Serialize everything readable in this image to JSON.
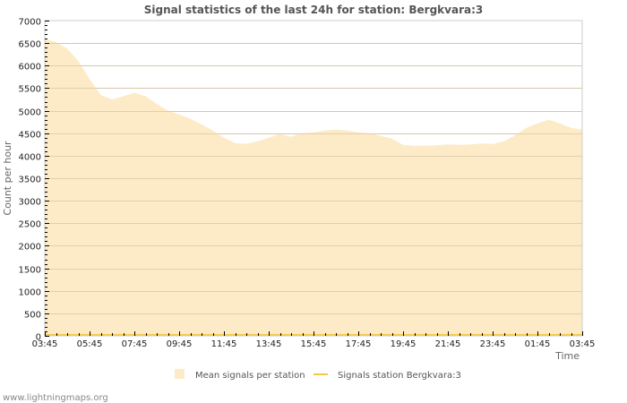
{
  "chart_data": {
    "type": "area",
    "title": "Signal statistics of the last 24h for station: Bergkvara:3",
    "xlabel": "Time",
    "ylabel": "Count per hour",
    "ylim": [
      0,
      7000
    ],
    "yticks": [
      0,
      500,
      1000,
      1500,
      2000,
      2500,
      3000,
      3500,
      4000,
      4500,
      5000,
      5500,
      6000,
      6500,
      7000
    ],
    "xtick_labels": [
      "03:45",
      "05:45",
      "07:45",
      "09:45",
      "11:45",
      "13:45",
      "15:45",
      "17:45",
      "19:45",
      "21:45",
      "23:45",
      "01:45",
      "03:45"
    ],
    "grid": true,
    "legend_position": "bottom",
    "x_hours": [
      0,
      0.5,
      1,
      1.5,
      2,
      2.5,
      3,
      3.5,
      4,
      4.5,
      5,
      5.5,
      6,
      6.5,
      7,
      7.5,
      8,
      8.5,
      9,
      9.5,
      10,
      10.5,
      11,
      11.5,
      12,
      12.5,
      13,
      13.5,
      14,
      14.5,
      15,
      15.5,
      16,
      16.5,
      17,
      17.5,
      18,
      18.5,
      19,
      19.5,
      20,
      20.5,
      21,
      21.5,
      22,
      22.5,
      23,
      23.5,
      24
    ],
    "series": [
      {
        "name": "Mean signals per station",
        "style": "area",
        "color": "#fdebc8",
        "values": [
          6600,
          6520,
          6380,
          6100,
          5700,
          5350,
          5250,
          5320,
          5400,
          5320,
          5150,
          5000,
          4920,
          4820,
          4700,
          4560,
          4400,
          4280,
          4260,
          4320,
          4400,
          4480,
          4420,
          4500,
          4520,
          4560,
          4580,
          4560,
          4520,
          4500,
          4440,
          4380,
          4240,
          4220,
          4220,
          4230,
          4250,
          4240,
          4250,
          4270,
          4260,
          4320,
          4450,
          4620,
          4720,
          4800,
          4720,
          4620,
          4580
        ]
      },
      {
        "name": "Signals station Bergkvara:3",
        "style": "line",
        "color": "#f5c842",
        "values": [
          0,
          0,
          0,
          0,
          0,
          0,
          0,
          0,
          0,
          0,
          0,
          0,
          0,
          0,
          0,
          0,
          0,
          0,
          0,
          0,
          0,
          0,
          0,
          0,
          0,
          0,
          0,
          0,
          0,
          0,
          0,
          0,
          0,
          0,
          0,
          0,
          0,
          0,
          0,
          0,
          0,
          0,
          0,
          0,
          0,
          0,
          0,
          0,
          0
        ]
      }
    ]
  },
  "legend": {
    "items": [
      {
        "label": "Mean signals per station",
        "swatch": "area",
        "color": "#fdebc8"
      },
      {
        "label": "Signals station Bergkvara:3",
        "swatch": "line",
        "color": "#f5c842"
      }
    ]
  },
  "footer": {
    "text": "www.lightningmaps.org"
  },
  "colors": {
    "grid": "#c8c8c8",
    "frame": "#cccccc",
    "area_fill": "#fdebc8",
    "line": "#f5c842"
  }
}
